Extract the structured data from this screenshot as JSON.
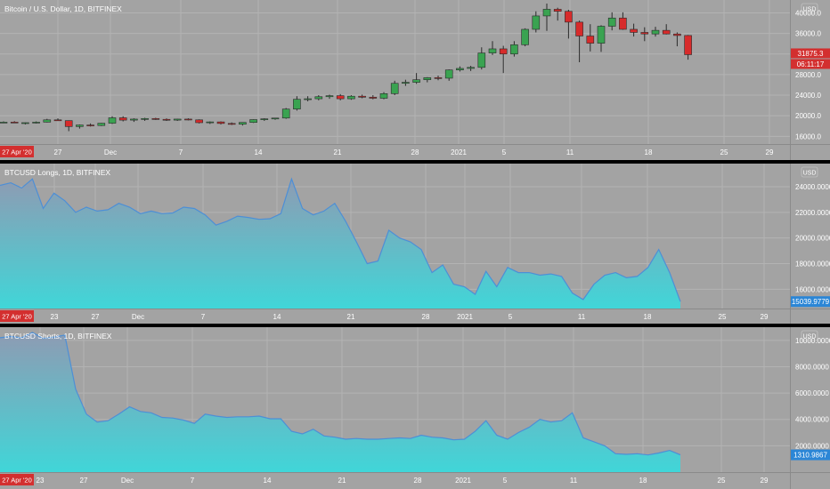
{
  "colors": {
    "panel_bg": "#a3a3a3",
    "grid": "#b3b3b3",
    "up_candle": "#3aa351",
    "down_candle": "#d72b2b",
    "wick": "#2a2a2a",
    "area_top": "#8e9bb3",
    "area_bottom": "#40d6d8",
    "line": "#4d8fd6",
    "price_badge_red": "#d32f2f",
    "price_badge_blue": "#2b86d6",
    "date_badge": "#d32f2f",
    "axis_text": "#ffffff",
    "title_text": "#ffffff"
  },
  "panels": [
    {
      "id": "price",
      "title": "Bitcoin / U.S. Dollar, 1D, BITFINEX",
      "currency_label": "USD",
      "date_badge": "27 Apr '20",
      "x_ticks": [
        "27",
        "Dec",
        "7",
        "14",
        "21",
        "28",
        "2021",
        "5",
        "11",
        "18",
        "25",
        "29"
      ]
    },
    {
      "id": "longs",
      "title": "BTCUSD Longs, 1D, BITFINEX",
      "currency_label": "USD",
      "date_badge": "27 Apr '20",
      "x_ticks": [
        "23",
        "27",
        "Dec",
        "7",
        "14",
        "21",
        "28",
        "2021",
        "5",
        "11",
        "18",
        "25",
        "29"
      ]
    },
    {
      "id": "shorts",
      "title": "BTCUSD Shorts, 1D, BITFINEX",
      "currency_label": "USD",
      "date_badge": "27 Apr '20",
      "x_ticks": [
        "23",
        "27",
        "Dec",
        "7",
        "14",
        "21",
        "28",
        "2021",
        "5",
        "11",
        "18",
        "25",
        "29"
      ]
    }
  ],
  "chart_data": [
    {
      "type": "candlestick",
      "title": "Bitcoin / U.S. Dollar, 1D, BITFINEX",
      "ylabel": "USD",
      "ylim": [
        14500,
        42500
      ],
      "y_ticks": [
        "16000.0",
        "20000.0",
        "24000.0",
        "28000.0",
        "32000.0",
        "36000.0",
        "40000.0"
      ],
      "y_tick_values": [
        16000,
        20000,
        24000,
        28000,
        32000,
        36000,
        40000
      ],
      "last_price_label": "31875.3",
      "countdown_label": "06:11:17",
      "last_price": 31875.3,
      "ohlc": [
        [
          18750,
          18900,
          18600,
          18750
        ],
        [
          18760,
          18950,
          18650,
          18700
        ],
        [
          18500,
          18700,
          18300,
          18650
        ],
        [
          18660,
          18900,
          18500,
          18750
        ],
        [
          18760,
          19400,
          18700,
          19200
        ],
        [
          19200,
          19500,
          19000,
          19050
        ],
        [
          19050,
          19100,
          17000,
          17900
        ],
        [
          17900,
          18300,
          17500,
          18200
        ],
        [
          18200,
          18500,
          17900,
          18100
        ],
        [
          18100,
          18600,
          18000,
          18550
        ],
        [
          18550,
          19900,
          18400,
          19600
        ],
        [
          19600,
          19900,
          18900,
          19150
        ],
        [
          19150,
          19500,
          18800,
          19350
        ],
        [
          19350,
          19600,
          19000,
          19450
        ],
        [
          19450,
          19600,
          19200,
          19300
        ],
        [
          19300,
          19500,
          19000,
          19150
        ],
        [
          19150,
          19400,
          19000,
          19350
        ],
        [
          19350,
          19500,
          19100,
          19200
        ],
        [
          19200,
          19300,
          18500,
          18650
        ],
        [
          18650,
          18900,
          18400,
          18800
        ],
        [
          18800,
          18900,
          18300,
          18500
        ],
        [
          18500,
          18700,
          18200,
          18350
        ],
        [
          18350,
          18700,
          18100,
          18700
        ],
        [
          18700,
          19300,
          18600,
          19250
        ],
        [
          19250,
          19500,
          19000,
          19400
        ],
        [
          19400,
          19600,
          19200,
          19550
        ],
        [
          19550,
          21500,
          19400,
          21300
        ],
        [
          21300,
          23800,
          21000,
          23200
        ],
        [
          23200,
          23800,
          22800,
          23300
        ],
        [
          23300,
          24000,
          23000,
          23700
        ],
        [
          23700,
          24100,
          23300,
          23900
        ],
        [
          23900,
          24200,
          23000,
          23300
        ],
        [
          23300,
          24000,
          23100,
          23800
        ],
        [
          23800,
          24100,
          23400,
          23600
        ],
        [
          23600,
          24000,
          23200,
          23400
        ],
        [
          23400,
          24600,
          23200,
          24300
        ],
        [
          24300,
          26800,
          24000,
          26300
        ],
        [
          26300,
          27000,
          25800,
          26500
        ],
        [
          26500,
          28300,
          26200,
          27000
        ],
        [
          27000,
          27500,
          26500,
          27400
        ],
        [
          27400,
          27800,
          26900,
          27300
        ],
        [
          27300,
          29000,
          26800,
          28900
        ],
        [
          28900,
          29600,
          28600,
          29200
        ],
        [
          29200,
          29700,
          28700,
          29400
        ],
        [
          29400,
          33300,
          29000,
          32200
        ],
        [
          32200,
          34500,
          31800,
          33000
        ],
        [
          33000,
          33600,
          28300,
          32000
        ],
        [
          32000,
          34500,
          31500,
          33800
        ],
        [
          33800,
          37000,
          33500,
          36800
        ],
        [
          36800,
          40300,
          36200,
          39400
        ],
        [
          39400,
          41800,
          36500,
          40700
        ],
        [
          40700,
          41000,
          38500,
          40300
        ],
        [
          40300,
          40600,
          35000,
          38200
        ],
        [
          38200,
          38500,
          30400,
          35500
        ],
        [
          35500,
          37800,
          32500,
          34100
        ],
        [
          34100,
          37600,
          32400,
          37400
        ],
        [
          37400,
          40100,
          36600,
          39000
        ],
        [
          39000,
          40100,
          36700,
          36800
        ],
        [
          36800,
          37900,
          35400,
          36200
        ],
        [
          36200,
          37200,
          34500,
          35900
        ],
        [
          35900,
          37300,
          35400,
          36600
        ],
        [
          36600,
          37800,
          35800,
          35900
        ],
        [
          35900,
          36200,
          33500,
          35600
        ],
        [
          35600,
          35700,
          30900,
          31875
        ]
      ]
    },
    {
      "type": "area",
      "title": "BTCUSD Longs, 1D, BITFINEX",
      "ylabel": "USD",
      "ylim": [
        14500,
        25800
      ],
      "y_ticks": [
        "16000.0000",
        "18000.0000",
        "20000.0000",
        "22000.0000",
        "24000.0000"
      ],
      "y_tick_values": [
        16000,
        18000,
        20000,
        22000,
        24000
      ],
      "last_value_label": "15039.9779",
      "last_value": 15039.9779,
      "values": [
        24100,
        24300,
        23900,
        24600,
        22300,
        23500,
        22900,
        22000,
        22400,
        22100,
        22200,
        22700,
        22400,
        21900,
        22100,
        21900,
        21950,
        22400,
        22300,
        21800,
        21000,
        21300,
        21700,
        21600,
        21450,
        21500,
        21900,
        24600,
        22300,
        21800,
        22100,
        22700,
        21300,
        19700,
        18000,
        18200,
        20600,
        20000,
        19700,
        19100,
        17300,
        17900,
        16400,
        16200,
        15600,
        17400,
        16200,
        17700,
        17300,
        17300,
        17100,
        17200,
        17000,
        15700,
        15200,
        16400,
        17100,
        17300,
        16900,
        17000,
        17700,
        19100,
        17300,
        15040
      ]
    },
    {
      "type": "area",
      "title": "BTCUSD Shorts, 1D, BITFINEX",
      "ylabel": "USD",
      "ylim": [
        0,
        11000
      ],
      "y_ticks": [
        "2000.0000",
        "4000.0000",
        "6000.0000",
        "8000.0000",
        "10000.0000"
      ],
      "y_tick_values": [
        2000,
        4000,
        6000,
        8000,
        10000
      ],
      "last_value_label": "1310.9867",
      "last_value": 1310.9867,
      "values": [
        10200,
        10300,
        10200,
        10600,
        10150,
        10250,
        10400,
        6300,
        4400,
        3800,
        3900,
        4400,
        4950,
        4600,
        4500,
        4150,
        4100,
        3950,
        3700,
        4400,
        4250,
        4150,
        4200,
        4200,
        4250,
        4050,
        4050,
        3100,
        2900,
        3250,
        2750,
        2650,
        2500,
        2550,
        2500,
        2500,
        2550,
        2600,
        2550,
        2800,
        2650,
        2600,
        2450,
        2500,
        3100,
        3900,
        2800,
        2500,
        3000,
        3400,
        4000,
        3800,
        3900,
        4500,
        2600,
        2300,
        2000,
        1400,
        1350,
        1400,
        1300,
        1450,
        1650,
        1311
      ]
    }
  ]
}
